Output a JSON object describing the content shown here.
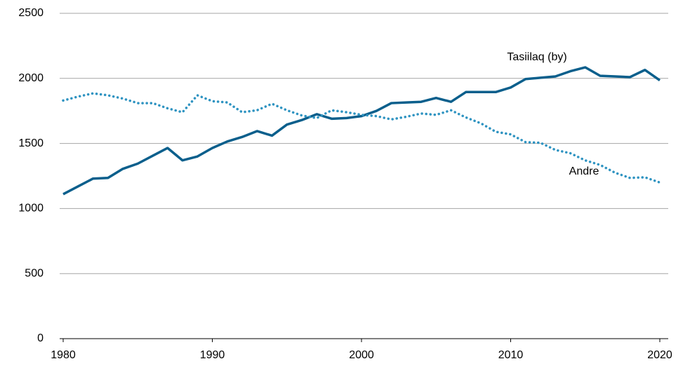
{
  "chart_data": {
    "type": "line",
    "x": [
      1980,
      1981,
      1982,
      1983,
      1984,
      1985,
      1986,
      1987,
      1988,
      1989,
      1990,
      1991,
      1992,
      1993,
      1994,
      1995,
      1996,
      1997,
      1998,
      1999,
      2000,
      2001,
      2002,
      2003,
      2004,
      2005,
      2006,
      2007,
      2008,
      2009,
      2010,
      2011,
      2012,
      2013,
      2014,
      2015,
      2016,
      2017,
      2018,
      2019,
      2020
    ],
    "series": [
      {
        "name": "Tasiilaq (by)",
        "color": "#0b5f8c",
        "style": "solid",
        "values": [
          1110,
          1170,
          1230,
          1235,
          1305,
          1345,
          1405,
          1465,
          1370,
          1400,
          1465,
          1515,
          1550,
          1595,
          1560,
          1645,
          1680,
          1725,
          1690,
          1695,
          1710,
          1750,
          1810,
          1815,
          1820,
          1850,
          1820,
          1895,
          1895,
          1895,
          1930,
          1995,
          2005,
          2015,
          2055,
          2085,
          2020,
          2015,
          2010,
          2065,
          1985
        ]
      },
      {
        "name": "Andre",
        "color": "#2e93c1",
        "style": "dotted",
        "values": [
          1830,
          1860,
          1885,
          1870,
          1845,
          1810,
          1810,
          1770,
          1740,
          1870,
          1825,
          1815,
          1740,
          1755,
          1805,
          1755,
          1715,
          1695,
          1755,
          1740,
          1720,
          1710,
          1685,
          1705,
          1730,
          1720,
          1755,
          1700,
          1655,
          1590,
          1570,
          1510,
          1505,
          1450,
          1425,
          1370,
          1335,
          1275,
          1235,
          1240,
          1200
        ]
      }
    ],
    "xlim": [
      1980,
      2020
    ],
    "xticks": [
      1980,
      1990,
      2000,
      2010,
      2020
    ],
    "ylim": [
      0,
      2500
    ],
    "yticks": [
      0,
      500,
      1000,
      1500,
      2000,
      2500
    ],
    "grid": true
  }
}
